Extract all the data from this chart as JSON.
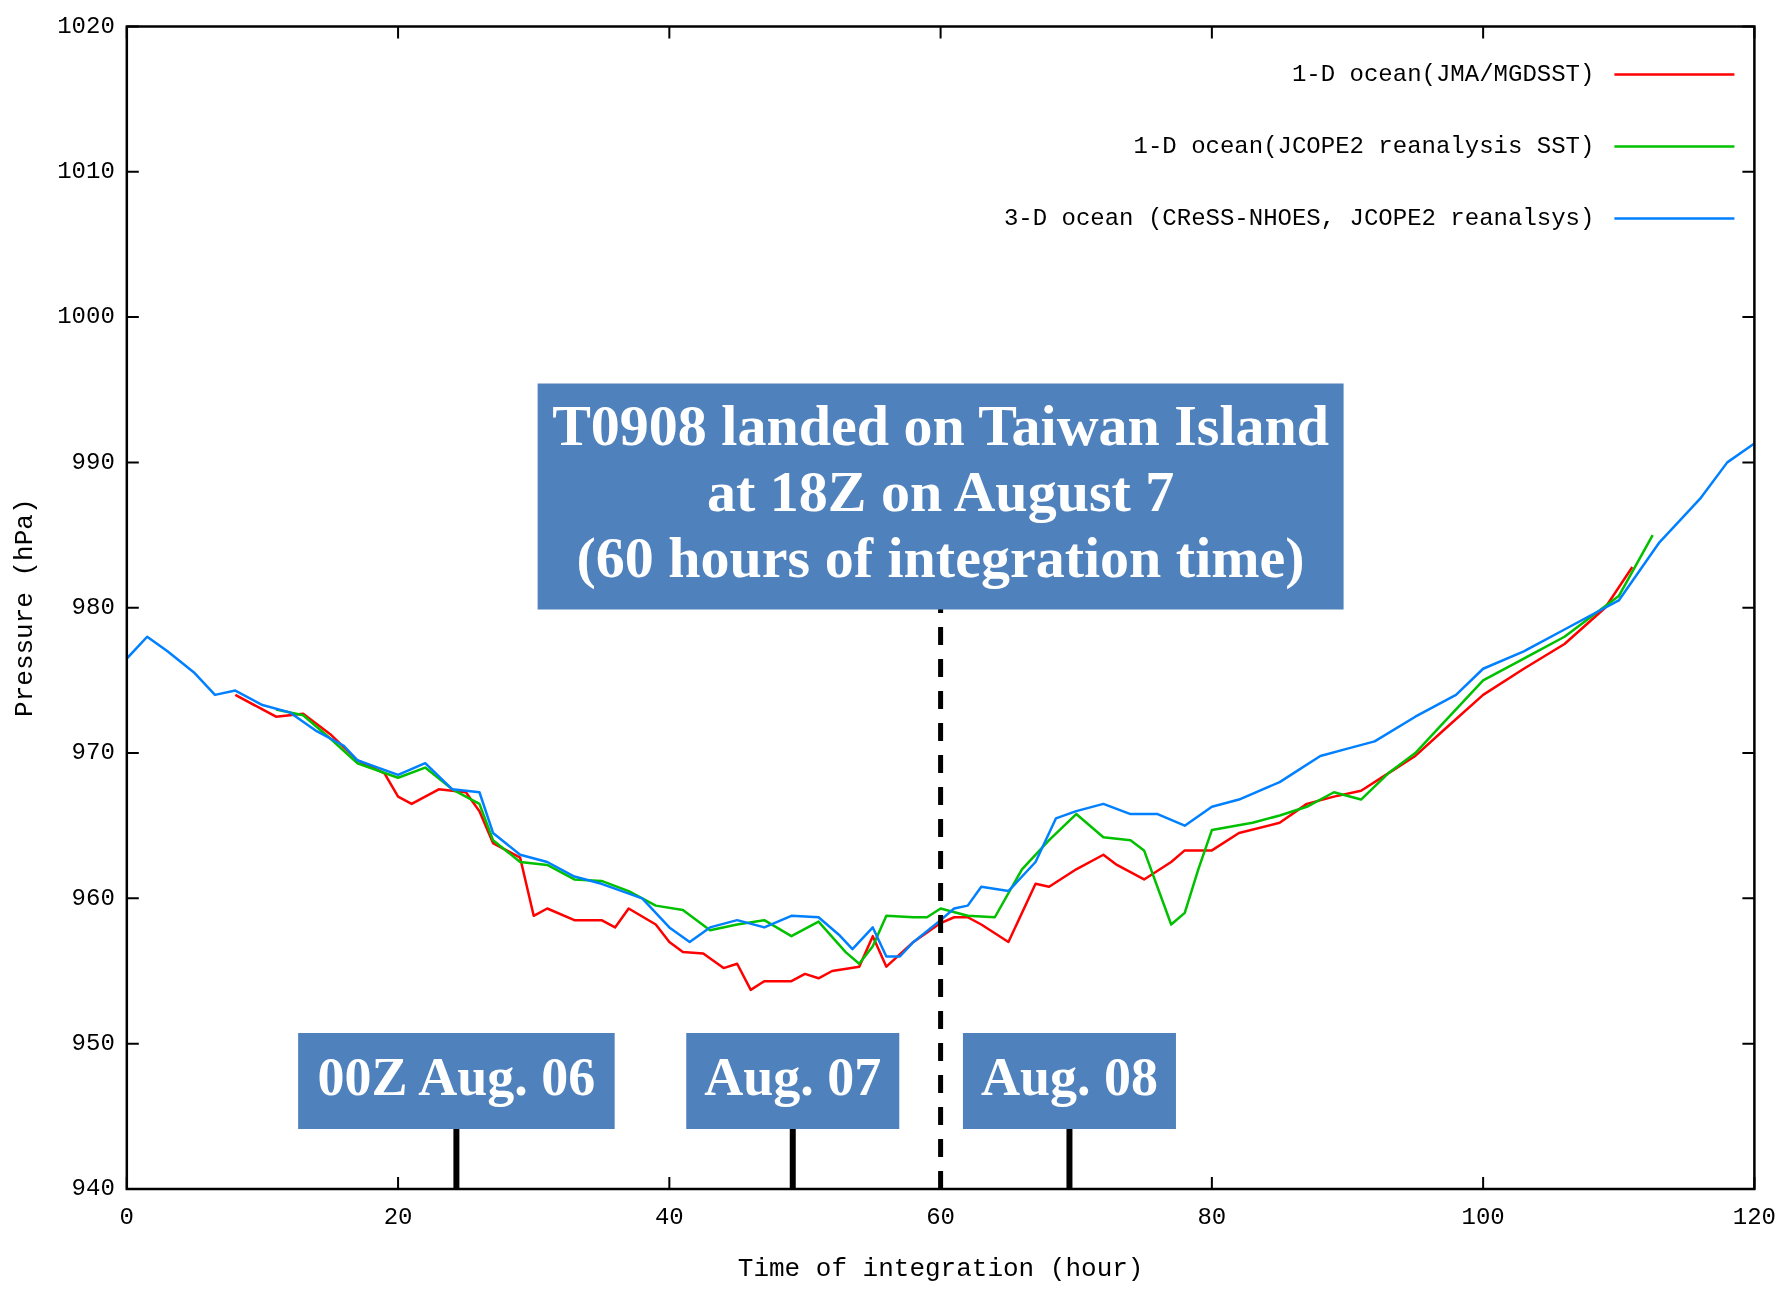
{
  "chart_data": {
    "type": "line",
    "xlabel": "Time of integration (hour)",
    "ylabel": "Pressure (hPa)",
    "xlim": [
      0,
      120
    ],
    "xticks": [
      0,
      20,
      40,
      60,
      80,
      100,
      120
    ],
    "ylim": [
      940,
      1020
    ],
    "yticks": [
      940,
      950,
      960,
      970,
      980,
      990,
      1000,
      1010,
      1020
    ],
    "grid": false,
    "legend": "top right",
    "marker": "none",
    "line_style": "solid",
    "series": [
      {
        "name": "1-D ocean(JMA/MGDSST)",
        "color": "#ff0000",
        "x": [
          8,
          10,
          11,
          13,
          15,
          17,
          19,
          20,
          21,
          23,
          25,
          26,
          27,
          29,
          30,
          31,
          33,
          35,
          36,
          37,
          39,
          40,
          41,
          42.5,
          44,
          45,
          46,
          47,
          49,
          50,
          51,
          52,
          54,
          55,
          56,
          58,
          60,
          61,
          62,
          63,
          65,
          67,
          68,
          70,
          72,
          73,
          75,
          77,
          78,
          80,
          82,
          85,
          87,
          89,
          91,
          93,
          95,
          97,
          100,
          103,
          106,
          109,
          111
        ],
        "values": [
          974,
          973,
          972.5,
          972.7,
          971.3,
          969.5,
          968.6,
          967,
          966.5,
          967.5,
          967.3,
          966,
          963.8,
          962.8,
          958.8,
          959.3,
          958.5,
          958.5,
          958,
          959.3,
          958.2,
          957,
          956.3,
          956.2,
          955.2,
          955.5,
          953.7,
          954.3,
          954.3,
          954.8,
          954.5,
          955,
          955.3,
          957.4,
          955.3,
          957,
          958.3,
          958.7,
          958.7,
          958.2,
          957,
          961,
          960.8,
          962,
          963,
          962.3,
          961.3,
          962.5,
          963.3,
          963.3,
          964.5,
          965.2,
          966.5,
          967,
          967.4,
          968.6,
          969.8,
          971.5,
          974,
          975.8,
          977.5,
          980,
          982.8
        ]
      },
      {
        "name": "1-D ocean(JCOPE2 reanalysis SST)",
        "color": "#00c000",
        "x": [
          11,
          13,
          15,
          17,
          20,
          22,
          24,
          26,
          27,
          29,
          31,
          33,
          35,
          37,
          39,
          41,
          43,
          45,
          47,
          49,
          51,
          53,
          54,
          55,
          56,
          58,
          59,
          60,
          62,
          64,
          66,
          68,
          70,
          72,
          74,
          75,
          77,
          78,
          79,
          80,
          83,
          85,
          87,
          89,
          91,
          93,
          95,
          97,
          100,
          103,
          106,
          110,
          112.5
        ],
        "values": [
          973,
          972.6,
          971,
          969.3,
          968.3,
          969,
          967.5,
          966.5,
          964,
          962.5,
          962.3,
          961.3,
          961.2,
          960.5,
          959.5,
          959.2,
          957.8,
          958.2,
          958.5,
          957.4,
          958.4,
          956.3,
          955.5,
          956.7,
          958.8,
          958.7,
          958.7,
          959.3,
          958.8,
          958.7,
          962,
          964,
          965.8,
          964.2,
          964,
          963.3,
          958.2,
          959,
          962,
          964.7,
          965.2,
          965.7,
          966.3,
          967.3,
          966.8,
          968.6,
          970,
          972,
          975,
          976.5,
          978,
          980.8,
          985
        ]
      },
      {
        "name": "3-D ocean (CReSS-NHOES, JCOPE2 reanalsys)",
        "color": "#0080ff",
        "x": [
          0,
          1.5,
          3,
          5,
          6.5,
          8,
          10,
          12,
          14,
          16,
          17,
          20,
          22,
          24,
          26,
          27,
          29,
          31,
          33,
          35,
          38,
          40,
          41.5,
          43,
          45,
          47,
          49,
          51,
          52.5,
          53.5,
          55,
          56,
          57,
          58,
          60,
          61,
          62,
          63,
          65,
          67,
          68.5,
          70,
          72,
          74,
          76,
          78,
          80,
          82,
          85,
          88,
          90,
          92,
          95,
          98,
          100,
          103,
          106,
          110,
          113,
          116,
          118,
          120
        ],
        "values": [
          976.5,
          978,
          977,
          975.5,
          974,
          974.3,
          973.3,
          972.8,
          971.5,
          970.5,
          969.5,
          968.5,
          969.3,
          967.5,
          967.3,
          964.5,
          963,
          962.5,
          961.5,
          961,
          960,
          958,
          957,
          958,
          958.5,
          958,
          958.8,
          958.7,
          957.5,
          956.5,
          958,
          956,
          956,
          957,
          958.5,
          959.3,
          959.5,
          960.8,
          960.5,
          962.5,
          965.5,
          966,
          966.5,
          965.8,
          965.8,
          965,
          966.3,
          966.8,
          968,
          969.8,
          970.3,
          970.8,
          972.5,
          974,
          975.8,
          977,
          978.5,
          980.5,
          984.5,
          987.5,
          990,
          991.3
        ]
      }
    ],
    "ref_lines": [
      {
        "axis": "x",
        "value": 60,
        "label": "T0908 landed on Taiwan Island\nat 18Z on August 7\n(60 hours of integration time)",
        "color": "#000000",
        "line_style": "dashed"
      },
      {
        "axis": "x",
        "value": 24.3,
        "label": "00Z Aug. 06",
        "color": "#000000",
        "line_style": "solid"
      },
      {
        "axis": "x",
        "value": 49.1,
        "label": "Aug. 07",
        "color": "#000000",
        "line_style": "solid"
      },
      {
        "axis": "x",
        "value": 69.5,
        "label": "Aug. 08",
        "color": "#000000",
        "line_style": "solid"
      }
    ]
  }
}
